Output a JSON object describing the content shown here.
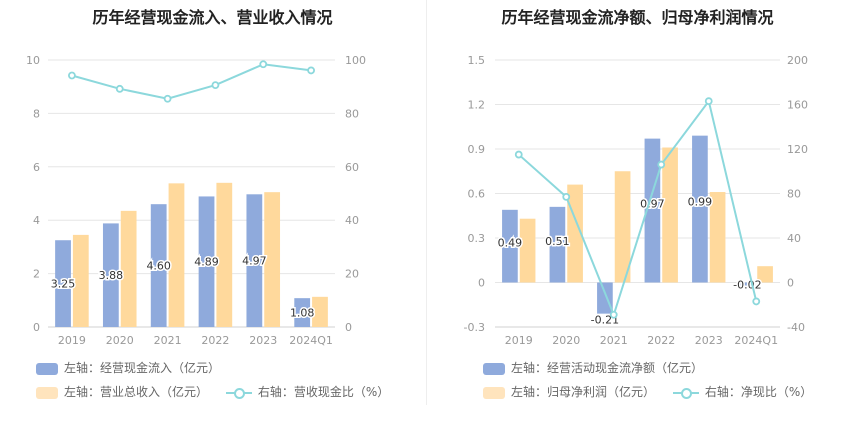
{
  "colors": {
    "bar_primary": "#8faadc",
    "bar_secondary": "#ffd99c",
    "line": "#8cd8dc",
    "grid": "#e6e6e6",
    "axis_text": "#999999"
  },
  "chart_data": [
    {
      "type": "bar",
      "title": "历年经营现金流入、营业收入情况",
      "categories": [
        "2019",
        "2020",
        "2021",
        "2022",
        "2023",
        "2024Q1"
      ],
      "left_axis": {
        "min": 0,
        "max": 10,
        "ticks": [
          "0",
          "2",
          "4",
          "6",
          "8",
          "10"
        ]
      },
      "right_axis": {
        "min": 0,
        "max": 100,
        "ticks": [
          "0",
          "20",
          "40",
          "60",
          "80",
          "100"
        ]
      },
      "series": [
        {
          "name": "左轴：经营现金流入（亿元）",
          "kind": "bar",
          "axis": "left",
          "values": [
            3.25,
            3.88,
            4.6,
            4.89,
            4.97,
            1.08
          ],
          "labels": [
            "3.25",
            "3.88",
            "4.60",
            "4.89",
            "4.97",
            "1.08"
          ]
        },
        {
          "name": "左轴：营业总收入（亿元）",
          "kind": "bar",
          "axis": "left",
          "values": [
            3.45,
            4.35,
            5.38,
            5.4,
            5.05,
            1.13
          ]
        },
        {
          "name": "右轴：营收现金比（%）",
          "kind": "line",
          "axis": "right",
          "values": [
            94.2,
            89.2,
            85.5,
            90.6,
            98.4,
            96.1
          ]
        }
      ]
    },
    {
      "type": "bar",
      "title": "历年经营现金流净额、归母净利润情况",
      "categories": [
        "2019",
        "2020",
        "2021",
        "2022",
        "2023",
        "2024Q1"
      ],
      "left_axis": {
        "min": -0.3,
        "max": 1.5,
        "ticks": [
          "-0.3",
          "0",
          "0.3",
          "0.6",
          "0.9",
          "1.2",
          "1.5"
        ]
      },
      "right_axis": {
        "min": -40,
        "max": 200,
        "ticks": [
          "-40",
          "0",
          "40",
          "80",
          "120",
          "160",
          "200"
        ]
      },
      "series": [
        {
          "name": "左轴：经营活动现金流净额（亿元）",
          "kind": "bar",
          "axis": "left",
          "values": [
            0.49,
            0.51,
            -0.21,
            0.97,
            0.99,
            -0.02
          ],
          "labels": [
            "0.49",
            "0.51",
            "-0.21",
            "0.97",
            "0.99",
            "-0.02"
          ]
        },
        {
          "name": "左轴：归母净利润（亿元）",
          "kind": "bar",
          "axis": "left",
          "values": [
            0.43,
            0.66,
            0.75,
            0.91,
            0.61,
            0.11
          ]
        },
        {
          "name": "右轴：净现比（%）",
          "kind": "line",
          "axis": "right",
          "values": [
            115,
            77,
            -29,
            106,
            163,
            -17
          ]
        }
      ]
    }
  ]
}
